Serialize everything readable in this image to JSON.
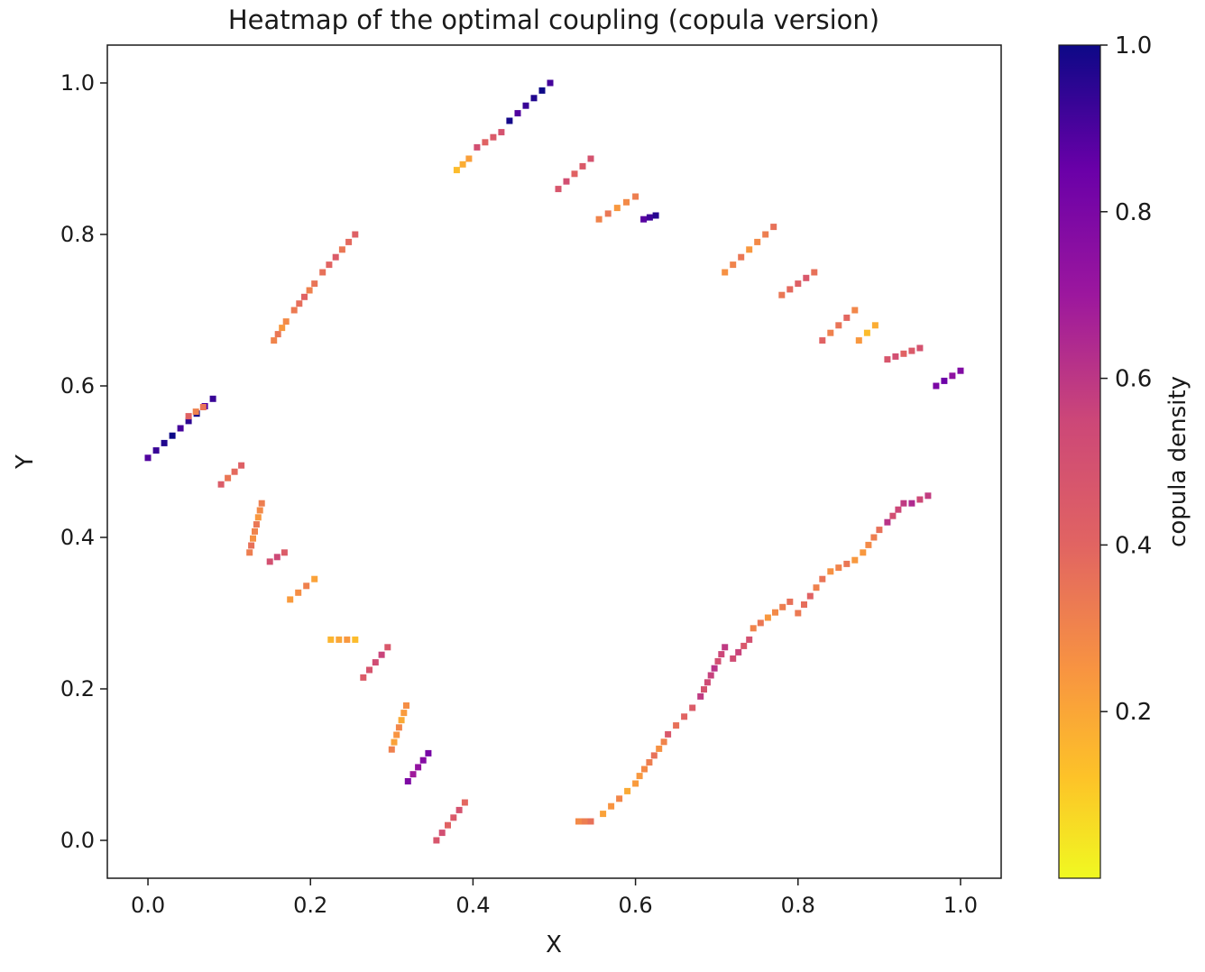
{
  "chart_data": {
    "type": "heatmap",
    "title": "Heatmap of the optimal coupling (copula version)",
    "xlabel": "X",
    "ylabel": "Y",
    "xlim": [
      -0.05,
      1.05
    ],
    "ylim": [
      -0.05,
      1.05
    ],
    "xticks": [
      "0.0",
      "0.2",
      "0.4",
      "0.6",
      "0.8",
      "1.0"
    ],
    "yticks": [
      "0.0",
      "0.2",
      "0.4",
      "0.6",
      "0.8",
      "1.0"
    ],
    "colorbar": {
      "label": "copula density",
      "range": [
        0.0,
        1.0
      ],
      "colormap": "plasma_r",
      "ticks": [
        "0.2",
        "0.4",
        "0.6",
        "0.8",
        "1.0"
      ]
    },
    "grid": false,
    "segments": [
      {
        "x": [
          0.0,
          0.08
        ],
        "y": [
          0.505,
          0.583
        ],
        "value": 0.95
      },
      {
        "x": [
          0.05,
          0.068
        ],
        "y": [
          0.56,
          0.572
        ],
        "value": 0.35
      },
      {
        "x": [
          0.09,
          0.115
        ],
        "y": [
          0.47,
          0.495
        ],
        "value": 0.4
      },
      {
        "x": [
          0.125,
          0.14
        ],
        "y": [
          0.38,
          0.445
        ],
        "value": 0.3
      },
      {
        "x": [
          0.15,
          0.168
        ],
        "y": [
          0.368,
          0.38
        ],
        "value": 0.5
      },
      {
        "x": [
          0.175,
          0.205
        ],
        "y": [
          0.318,
          0.345
        ],
        "value": 0.25
      },
      {
        "x": [
          0.225,
          0.255
        ],
        "y": [
          0.265,
          0.265
        ],
        "value": 0.2
      },
      {
        "x": [
          0.265,
          0.295
        ],
        "y": [
          0.215,
          0.255
        ],
        "value": 0.5
      },
      {
        "x": [
          0.3,
          0.318
        ],
        "y": [
          0.12,
          0.178
        ],
        "value": 0.25
      },
      {
        "x": [
          0.32,
          0.345
        ],
        "y": [
          0.078,
          0.115
        ],
        "value": 0.75
      },
      {
        "x": [
          0.355,
          0.39
        ],
        "y": [
          0.0,
          0.05
        ],
        "value": 0.45
      },
      {
        "x": [
          0.155,
          0.17
        ],
        "y": [
          0.66,
          0.685
        ],
        "value": 0.3
      },
      {
        "x": [
          0.18,
          0.205
        ],
        "y": [
          0.7,
          0.735
        ],
        "value": 0.35
      },
      {
        "x": [
          0.215,
          0.255
        ],
        "y": [
          0.75,
          0.8
        ],
        "value": 0.4
      },
      {
        "x": [
          0.38,
          0.395
        ],
        "y": [
          0.885,
          0.9
        ],
        "value": 0.2
      },
      {
        "x": [
          0.405,
          0.435
        ],
        "y": [
          0.915,
          0.935
        ],
        "value": 0.45
      },
      {
        "x": [
          0.445,
          0.495
        ],
        "y": [
          0.95,
          1.0
        ],
        "value": 0.95
      },
      {
        "x": [
          0.505,
          0.545
        ],
        "y": [
          0.86,
          0.9
        ],
        "value": 0.45
      },
      {
        "x": [
          0.555,
          0.6
        ],
        "y": [
          0.82,
          0.85
        ],
        "value": 0.3
      },
      {
        "x": [
          0.61,
          0.625
        ],
        "y": [
          0.82,
          0.825
        ],
        "value": 0.9
      },
      {
        "x": [
          0.71,
          0.77
        ],
        "y": [
          0.75,
          0.81
        ],
        "value": 0.3
      },
      {
        "x": [
          0.78,
          0.82
        ],
        "y": [
          0.72,
          0.75
        ],
        "value": 0.4
      },
      {
        "x": [
          0.83,
          0.87
        ],
        "y": [
          0.66,
          0.7
        ],
        "value": 0.35
      },
      {
        "x": [
          0.875,
          0.895
        ],
        "y": [
          0.66,
          0.68
        ],
        "value": 0.2
      },
      {
        "x": [
          0.91,
          0.95
        ],
        "y": [
          0.635,
          0.65
        ],
        "value": 0.45
      },
      {
        "x": [
          0.97,
          1.0
        ],
        "y": [
          0.6,
          0.62
        ],
        "value": 0.8
      },
      {
        "x": [
          0.53,
          0.545
        ],
        "y": [
          0.025,
          0.025
        ],
        "value": 0.3
      },
      {
        "x": [
          0.56,
          0.6
        ],
        "y": [
          0.035,
          0.075
        ],
        "value": 0.25
      },
      {
        "x": [
          0.605,
          0.635
        ],
        "y": [
          0.085,
          0.13
        ],
        "value": 0.3
      },
      {
        "x": [
          0.64,
          0.67
        ],
        "y": [
          0.14,
          0.175
        ],
        "value": 0.4
      },
      {
        "x": [
          0.68,
          0.71
        ],
        "y": [
          0.19,
          0.255
        ],
        "value": 0.55
      },
      {
        "x": [
          0.72,
          0.74
        ],
        "y": [
          0.24,
          0.265
        ],
        "value": 0.5
      },
      {
        "x": [
          0.745,
          0.79
        ],
        "y": [
          0.28,
          0.315
        ],
        "value": 0.3
      },
      {
        "x": [
          0.8,
          0.83
        ],
        "y": [
          0.3,
          0.345
        ],
        "value": 0.35
      },
      {
        "x": [
          0.84,
          0.87
        ],
        "y": [
          0.355,
          0.37
        ],
        "value": 0.3
      },
      {
        "x": [
          0.88,
          0.9
        ],
        "y": [
          0.38,
          0.41
        ],
        "value": 0.3
      },
      {
        "x": [
          0.91,
          0.93
        ],
        "y": [
          0.42,
          0.445
        ],
        "value": 0.55
      },
      {
        "x": [
          0.94,
          0.96
        ],
        "y": [
          0.445,
          0.455
        ],
        "value": 0.6
      }
    ]
  }
}
